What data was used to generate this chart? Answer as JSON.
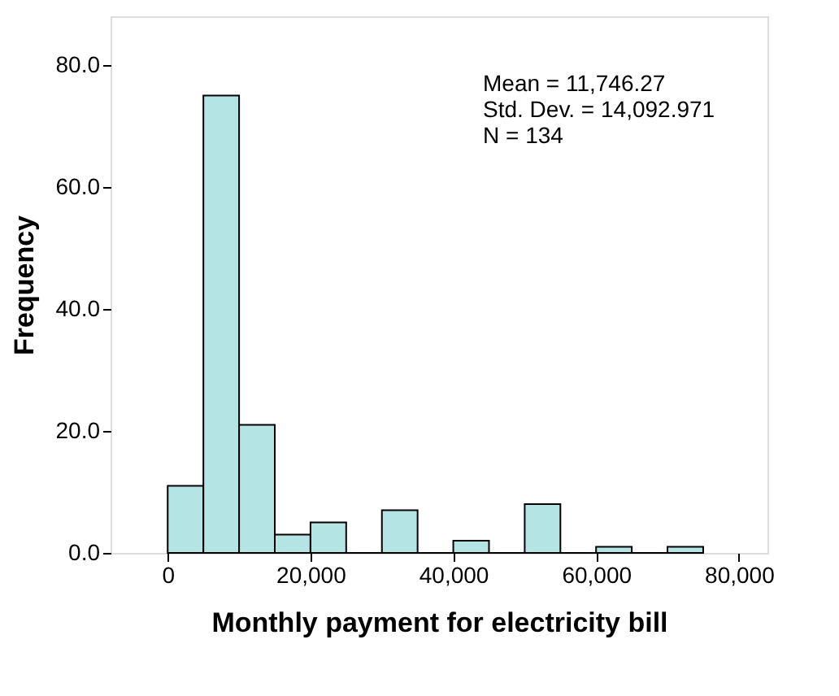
{
  "chart_data": {
    "type": "histogram",
    "xlabel": "Monthly payment for electricity bill",
    "ylabel": "Frequency",
    "bins": [
      0,
      5000,
      10000,
      15000,
      20000,
      25000,
      30000,
      35000,
      40000,
      45000,
      50000,
      55000,
      60000,
      65000,
      70000,
      75000
    ],
    "values": [
      11,
      75,
      21,
      3,
      5,
      0,
      7,
      0,
      2,
      0,
      8,
      0,
      1,
      0,
      1
    ],
    "color": "#b4e4e4",
    "xlim": [
      -8000,
      84000
    ],
    "xticks": [
      {
        "value": 0,
        "label": "0"
      },
      {
        "value": 20000,
        "label": "20,000"
      },
      {
        "value": 40000,
        "label": "40,000"
      },
      {
        "value": 60000,
        "label": "60,000"
      },
      {
        "value": 80000,
        "label": "80,000"
      }
    ],
    "ylim": [
      0,
      88
    ],
    "yticks": [
      {
        "value": 0,
        "label": "0.0"
      },
      {
        "value": 20,
        "label": "20.0"
      },
      {
        "value": 40,
        "label": "40.0"
      },
      {
        "value": 60,
        "label": "60.0"
      },
      {
        "value": 80,
        "label": "80.0"
      }
    ],
    "annotations": [
      "Mean = 11,746.27",
      "Std. Dev. = 14,092.971",
      "N = 134"
    ],
    "grid": false
  }
}
